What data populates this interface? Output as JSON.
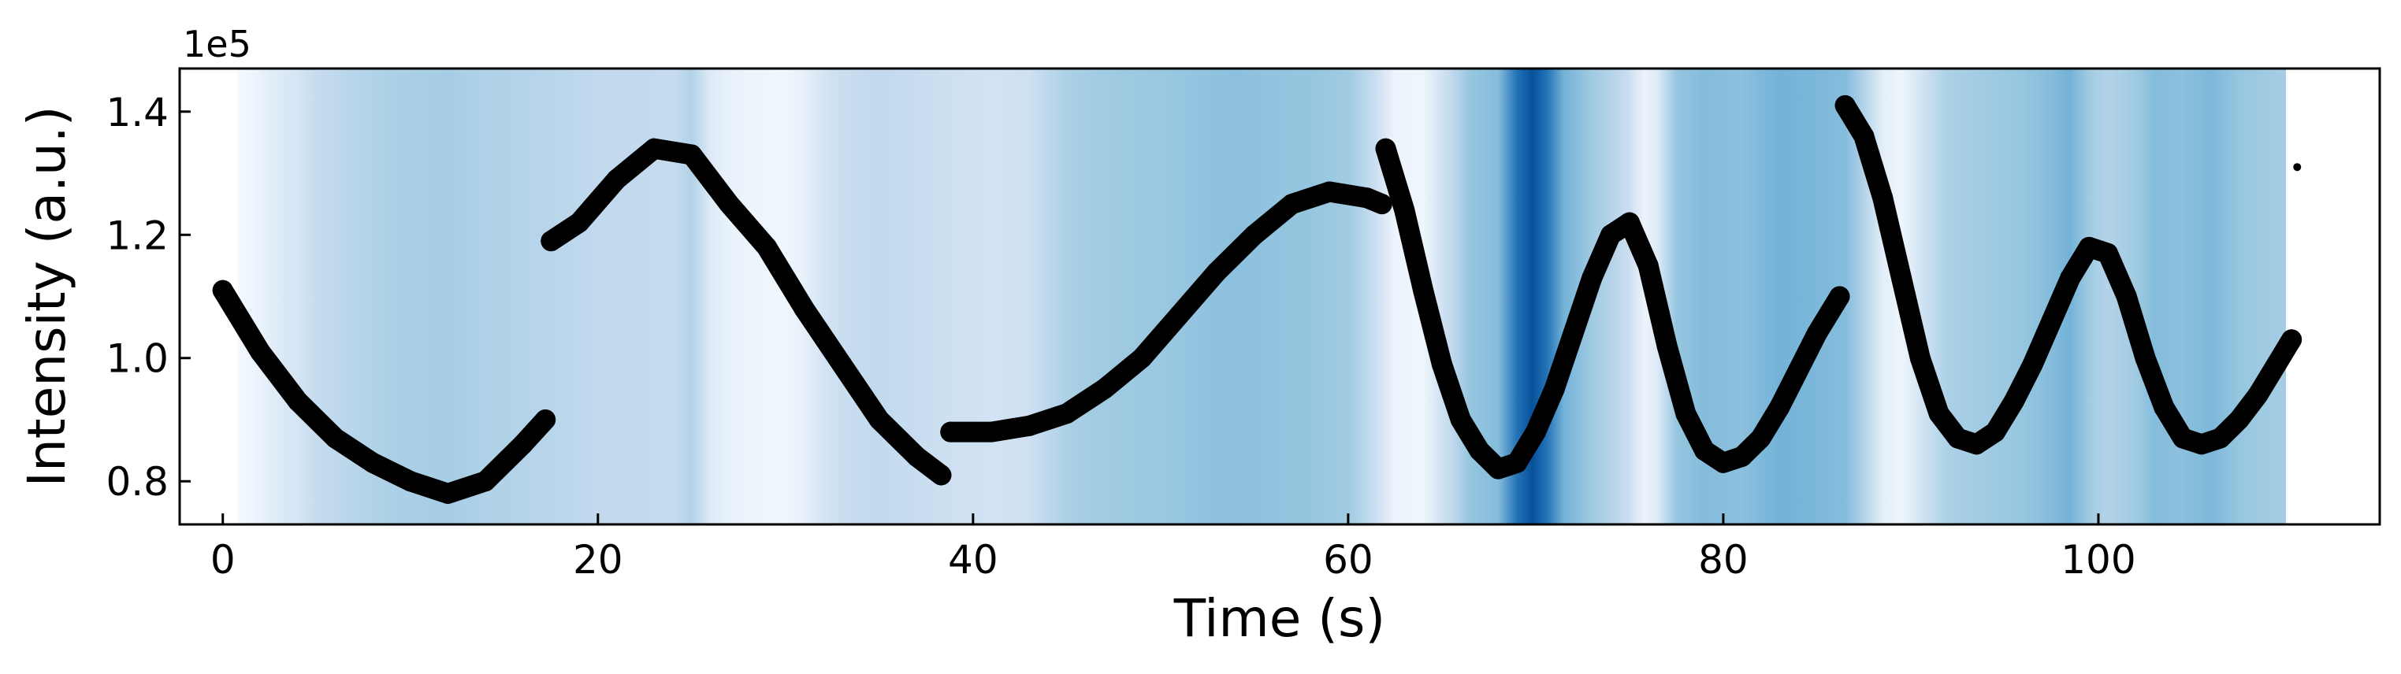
{
  "chart_data": {
    "type": "scatter",
    "title": "",
    "xlabel": "Time (s)",
    "ylabel": "Intensity (a.u.)",
    "offset_label": "1e5",
    "xlim": [
      -2.3,
      115.0
    ],
    "ylim": [
      73000,
      147000
    ],
    "xticks": [
      0,
      20,
      40,
      60,
      80,
      100
    ],
    "xtick_labels": [
      "0",
      "20",
      "40",
      "60",
      "80",
      "100"
    ],
    "yticks": [
      80000,
      100000,
      120000,
      140000
    ],
    "ytick_labels": [
      "0.8",
      "1.0",
      "1.2",
      "1.4"
    ],
    "grid": false,
    "legend": "none",
    "marker_color": "#000000",
    "background_colormap": "Blues",
    "background_extent": [
      0.8,
      110.0
    ],
    "background_shading": [
      [
        0.8,
        0.02
      ],
      [
        2,
        0.08
      ],
      [
        3,
        0.15
      ],
      [
        4,
        0.2
      ],
      [
        5,
        0.28
      ],
      [
        7,
        0.34
      ],
      [
        9,
        0.38
      ],
      [
        12,
        0.4
      ],
      [
        14,
        0.36
      ],
      [
        16,
        0.35
      ],
      [
        18,
        0.33
      ],
      [
        20,
        0.3
      ],
      [
        22,
        0.3
      ],
      [
        24,
        0.28
      ],
      [
        25,
        0.36
      ],
      [
        26,
        0.15
      ],
      [
        27,
        0.08
      ],
      [
        29,
        0.05
      ],
      [
        30,
        0.04
      ],
      [
        31,
        0.1
      ],
      [
        32,
        0.2
      ],
      [
        33,
        0.26
      ],
      [
        35,
        0.3
      ],
      [
        38,
        0.25
      ],
      [
        41,
        0.22
      ],
      [
        43,
        0.24
      ],
      [
        45,
        0.38
      ],
      [
        47,
        0.42
      ],
      [
        50,
        0.44
      ],
      [
        52,
        0.46
      ],
      [
        54,
        0.48
      ],
      [
        56,
        0.46
      ],
      [
        58,
        0.45
      ],
      [
        60,
        0.42
      ],
      [
        61.5,
        0.25
      ],
      [
        62.5,
        0.06
      ],
      [
        64,
        0.05
      ],
      [
        65.5,
        0.3
      ],
      [
        66.5,
        0.45
      ],
      [
        68,
        0.5
      ],
      [
        69,
        0.85
      ],
      [
        69.8,
        1.0
      ],
      [
        70.6,
        0.85
      ],
      [
        71.5,
        0.55
      ],
      [
        73,
        0.42
      ],
      [
        74,
        0.35
      ],
      [
        75,
        0.25
      ],
      [
        75.8,
        0.06
      ],
      [
        76.5,
        0.15
      ],
      [
        77.5,
        0.45
      ],
      [
        79,
        0.5
      ],
      [
        81,
        0.48
      ],
      [
        83,
        0.55
      ],
      [
        85,
        0.52
      ],
      [
        86.5,
        0.5
      ],
      [
        87.5,
        0.35
      ],
      [
        88.5,
        0.12
      ],
      [
        89.5,
        0.05
      ],
      [
        90.5,
        0.2
      ],
      [
        92,
        0.38
      ],
      [
        94,
        0.42
      ],
      [
        96,
        0.45
      ],
      [
        97.5,
        0.5
      ],
      [
        98.5,
        0.55
      ],
      [
        99.5,
        0.42
      ],
      [
        100.5,
        0.35
      ],
      [
        102,
        0.42
      ],
      [
        103,
        0.5
      ],
      [
        104.5,
        0.48
      ],
      [
        106,
        0.52
      ],
      [
        107.5,
        0.45
      ],
      [
        109,
        0.42
      ],
      [
        110,
        0.4
      ]
    ],
    "series": [
      {
        "x": [
          0,
          2,
          4,
          6,
          8,
          10,
          12,
          14,
          16,
          17.2
        ],
        "y": [
          111000,
          101000,
          93000,
          87000,
          83000,
          80000,
          78000,
          80000,
          86000,
          90000
        ]
      },
      {
        "x": [
          17.5,
          19,
          21,
          23,
          25,
          27,
          29,
          31,
          33,
          35,
          37,
          38.3
        ],
        "y": [
          119000,
          122000,
          129000,
          134000,
          133000,
          125000,
          118000,
          108000,
          99000,
          90000,
          84000,
          81000
        ]
      },
      {
        "x": [
          38.8,
          41,
          43,
          45,
          47,
          49,
          51,
          53,
          55,
          57,
          59,
          61,
          61.8
        ],
        "y": [
          88000,
          88000,
          89000,
          91000,
          95000,
          100000,
          107000,
          114000,
          120000,
          125000,
          127000,
          126000,
          125000
        ]
      },
      {
        "x": [
          62,
          63,
          64,
          65,
          66,
          67,
          68,
          69,
          70,
          71,
          72,
          73,
          74,
          75,
          76,
          77,
          78,
          79,
          80,
          81,
          82,
          83,
          84,
          85,
          86.2
        ],
        "y": [
          134000,
          124000,
          111000,
          99000,
          90000,
          85000,
          82000,
          83000,
          88000,
          95000,
          104000,
          113000,
          120000,
          122000,
          115000,
          102000,
          91000,
          85000,
          83000,
          84000,
          87000,
          92000,
          98000,
          104000,
          110000
        ]
      },
      {
        "x": [
          86.5,
          87.5,
          88.5,
          89.5,
          90.5,
          91.5,
          92.5,
          93.5,
          94.5,
          95.5,
          96.5,
          97.5,
          98.5,
          99.5,
          100.5,
          101.5,
          102.5,
          103.5,
          104.5,
          105.5,
          106.5,
          107.5,
          108.5,
          109.5,
          110.3
        ],
        "y": [
          141000,
          136000,
          126000,
          113000,
          100000,
          91000,
          87000,
          86000,
          88000,
          93000,
          99000,
          106000,
          113000,
          118000,
          117000,
          110000,
          100000,
          92000,
          87000,
          86000,
          87000,
          90000,
          94000,
          99000,
          103000
        ]
      },
      {
        "x": [
          110.6
        ],
        "y": [
          131000
        ]
      }
    ]
  }
}
